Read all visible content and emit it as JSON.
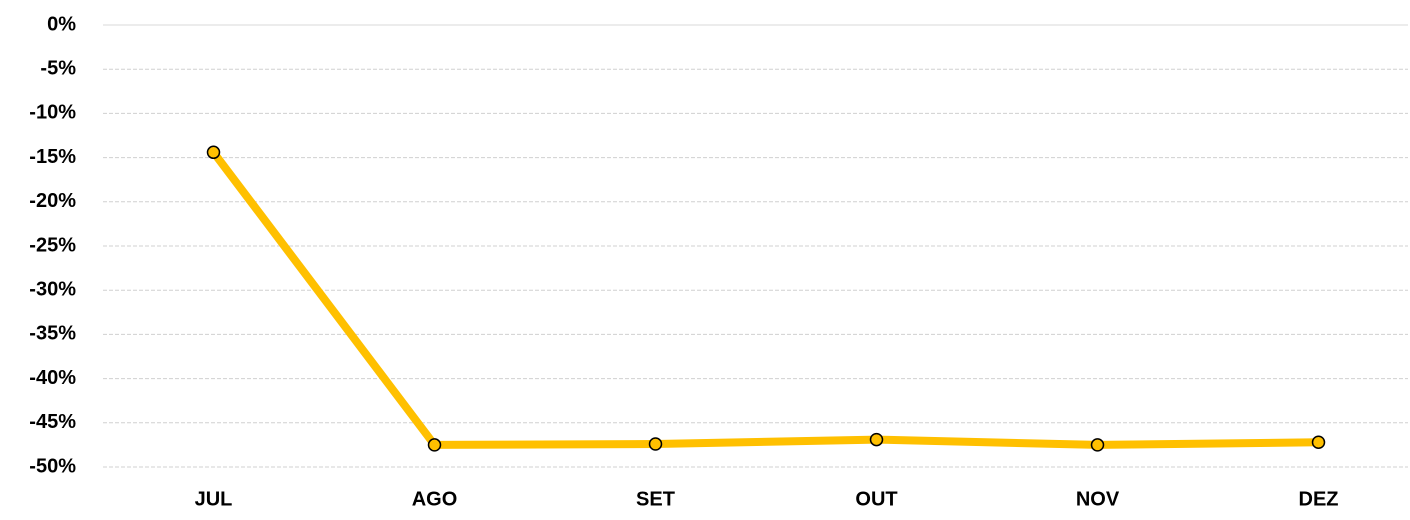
{
  "chart_data": {
    "type": "line",
    "categories": [
      "JUL",
      "AGO",
      "SET",
      "OUT",
      "NOV",
      "DEZ"
    ],
    "values": [
      -14.4,
      -47.5,
      -47.4,
      -46.9,
      -47.5,
      -47.2
    ],
    "color": "#FFC000",
    "ylim": [
      -50,
      0
    ],
    "yticks": [
      {
        "value": 0,
        "label": "0%"
      },
      {
        "value": -5,
        "label": "-5%"
      },
      {
        "value": -10,
        "label": "-10%"
      },
      {
        "value": -15,
        "label": "-15%"
      },
      {
        "value": -20,
        "label": "-20%"
      },
      {
        "value": -25,
        "label": "-25%"
      },
      {
        "value": -30,
        "label": "-30%"
      },
      {
        "value": -35,
        "label": "-35%"
      },
      {
        "value": -40,
        "label": "-40%"
      },
      {
        "value": -45,
        "label": "-45%"
      },
      {
        "value": -50,
        "label": "-50%"
      }
    ],
    "grid": true
  }
}
